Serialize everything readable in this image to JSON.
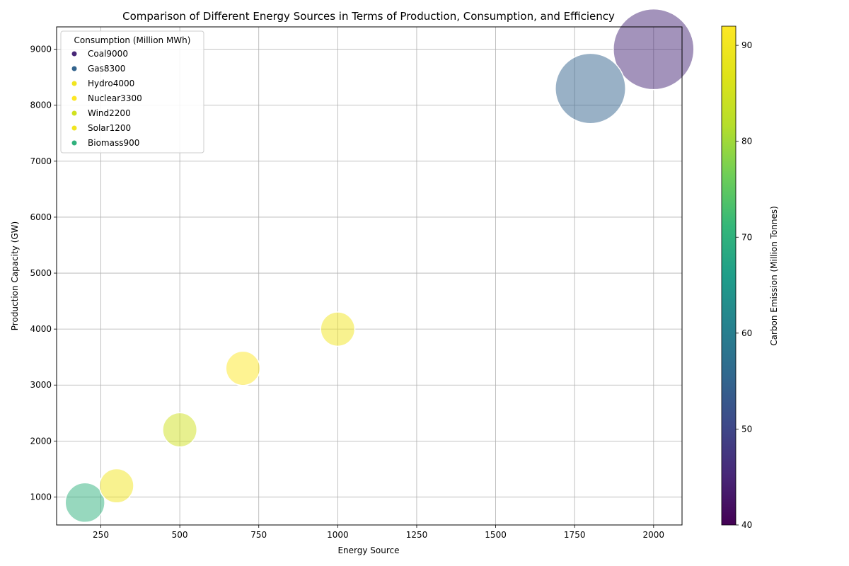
{
  "chart_data": {
    "type": "scatter",
    "title": "Comparison of Different Energy Sources in Terms of Production, Consumption, and Efficiency",
    "xlabel": "Energy Source",
    "ylabel": "Production Capacity (GW)",
    "xlim": [
      110,
      2090
    ],
    "ylim": [
      500,
      9400
    ],
    "xticks": [
      250,
      500,
      750,
      1000,
      1250,
      1500,
      1750,
      2000
    ],
    "yticks": [
      1000,
      2000,
      3000,
      4000,
      5000,
      6000,
      7000,
      8000,
      9000
    ],
    "grid": true,
    "colorbar": {
      "label": "Carbon Emission (Million Tonnes)",
      "range": [
        40,
        92
      ],
      "ticks": [
        40,
        50,
        60,
        70,
        80,
        90
      ],
      "colormap": "viridis"
    },
    "legend": {
      "title": "Consumption (Million MWh)",
      "placement": "upper-left",
      "entries": [
        "Coal9000",
        "Gas8300",
        "Hydro4000",
        "Nuclear3300",
        "Wind2200",
        "Solar1200",
        "Biomass900"
      ]
    },
    "points": [
      {
        "source": "Coal",
        "x": 2000,
        "y": 9000,
        "consumption": 9000,
        "carbon": 45,
        "size_rank": 1.0
      },
      {
        "source": "Gas",
        "x": 1800,
        "y": 8300,
        "consumption": 8300,
        "carbon": 55,
        "size_rank": 0.76
      },
      {
        "source": "Hydro",
        "x": 1000,
        "y": 4000,
        "consumption": 4000,
        "carbon": 90,
        "size_rank": 0.18
      },
      {
        "source": "Nuclear",
        "x": 700,
        "y": 3300,
        "consumption": 3300,
        "carbon": 92,
        "size_rank": 0.18
      },
      {
        "source": "Wind",
        "x": 500,
        "y": 2200,
        "consumption": 2200,
        "carbon": 85,
        "size_rank": 0.18
      },
      {
        "source": "Solar",
        "x": 300,
        "y": 1200,
        "consumption": 1200,
        "carbon": 90,
        "size_rank": 0.18
      },
      {
        "source": "Biomass",
        "x": 200,
        "y": 900,
        "consumption": 900,
        "carbon": 70,
        "size_rank": 0.24
      }
    ]
  }
}
